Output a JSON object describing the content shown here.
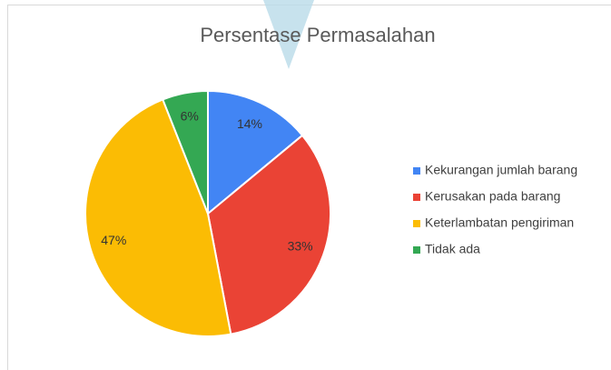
{
  "chart_data": {
    "type": "pie",
    "title": "Persentase Permasalahan",
    "categories": [
      "Kekurangan jumlah barang",
      "Kerusakan pada barang",
      "Keterlambatan pengiriman",
      "Tidak ada"
    ],
    "values": [
      14,
      33,
      47,
      6
    ],
    "value_labels": [
      "14%",
      "33%",
      "47%",
      "6%"
    ],
    "colors": [
      "#4285f4",
      "#ea4335",
      "#fbbc04",
      "#34a853"
    ],
    "legend": "right"
  }
}
